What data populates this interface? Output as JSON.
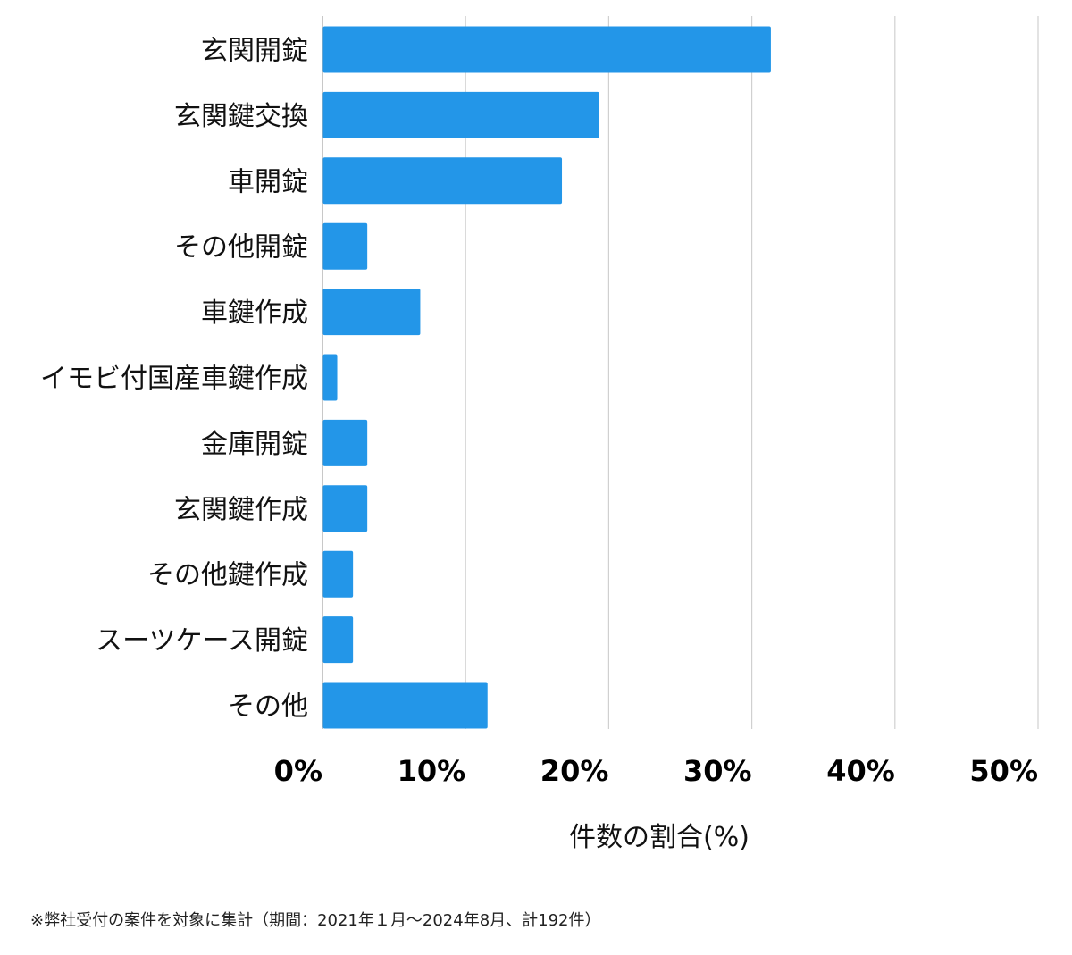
{
  "chart_data": {
    "type": "bar",
    "orientation": "horizontal",
    "categories": [
      "玄関開錠",
      "玄関鍵交換",
      "車開錠",
      "その他開錠",
      "車鍵作成",
      "イモビ付国産車鍵作成",
      "金庫開錠",
      "玄関鍵作成",
      "その他鍵作成",
      "スーツケース開錠",
      "その他"
    ],
    "values": [
      31.3,
      19.3,
      16.7,
      3.1,
      6.8,
      1.0,
      3.1,
      3.1,
      2.1,
      2.1,
      11.5
    ],
    "xlim": [
      0,
      50
    ],
    "xticks": [
      0,
      10,
      20,
      30,
      40,
      50
    ],
    "xtick_labels": [
      "0%",
      "10%",
      "20%",
      "30%",
      "40%",
      "50%"
    ],
    "xlabel": "件数の割合(%)",
    "ylabel": "",
    "title": "",
    "grid": true,
    "colors": {
      "bar": "#2396e8",
      "grid": "#d0d0d0",
      "axis": "#b5b5b5"
    }
  },
  "footnote": "※弊社受付の案件を対象に集計（期間：2021年１月～2024年8月、計192件）"
}
